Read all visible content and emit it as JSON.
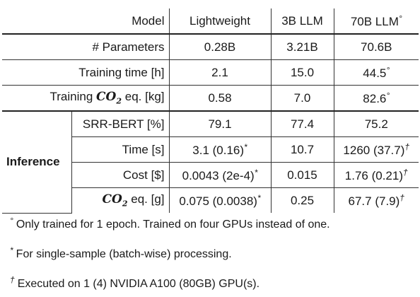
{
  "header": {
    "model": "Model",
    "cols": [
      "Lightweight",
      "3B LLM",
      "70B LLM"
    ],
    "col3_mark": "°"
  },
  "rows": {
    "params": {
      "label": "# Parameters",
      "vals": [
        "0.28B",
        "3.21B",
        "70.6B"
      ]
    },
    "train_time": {
      "label": "Training time [h]",
      "vals": [
        "2.1",
        "15.0",
        "44.5"
      ],
      "mark3": "°"
    },
    "train_co2": {
      "label_pre": "Training ",
      "co2": "CO",
      "co2_sub": "2",
      "label_post": " eq. [kg]",
      "vals": [
        "0.58",
        "7.0",
        "82.6"
      ],
      "mark3": "°"
    }
  },
  "inference": {
    "group_label": "Inference",
    "srr": {
      "label": "SRR-BERT [%]",
      "vals": [
        "79.1",
        "77.4",
        "75.2"
      ]
    },
    "time": {
      "label": "Time [s]",
      "vals": [
        "3.1 (0.16)",
        "10.7",
        "1260 (37.7)"
      ],
      "mark1": "*",
      "mark3": "†"
    },
    "cost": {
      "label": "Cost [$]",
      "vals": [
        "0.0043 (2e-4)",
        "0.015",
        "1.76 (0.21)"
      ],
      "mark1": "*",
      "mark3": "†"
    },
    "co2": {
      "co2": "CO",
      "co2_sub": "2",
      "label_post": " eq. [g]",
      "vals": [
        "0.075 (0.0038)",
        "0.25",
        "67.7 (7.9)"
      ],
      "mark1": "*",
      "mark3": "†"
    }
  },
  "notes": [
    {
      "sym": "°",
      "text": "Only trained for 1 epoch. Trained on four GPUs instead of one."
    },
    {
      "sym": "*",
      "text": "For single-sample (batch-wise) processing."
    },
    {
      "sym": "†",
      "text": "Executed on 1 (4) NVIDIA A100 (80GB) GPU(s)."
    }
  ]
}
